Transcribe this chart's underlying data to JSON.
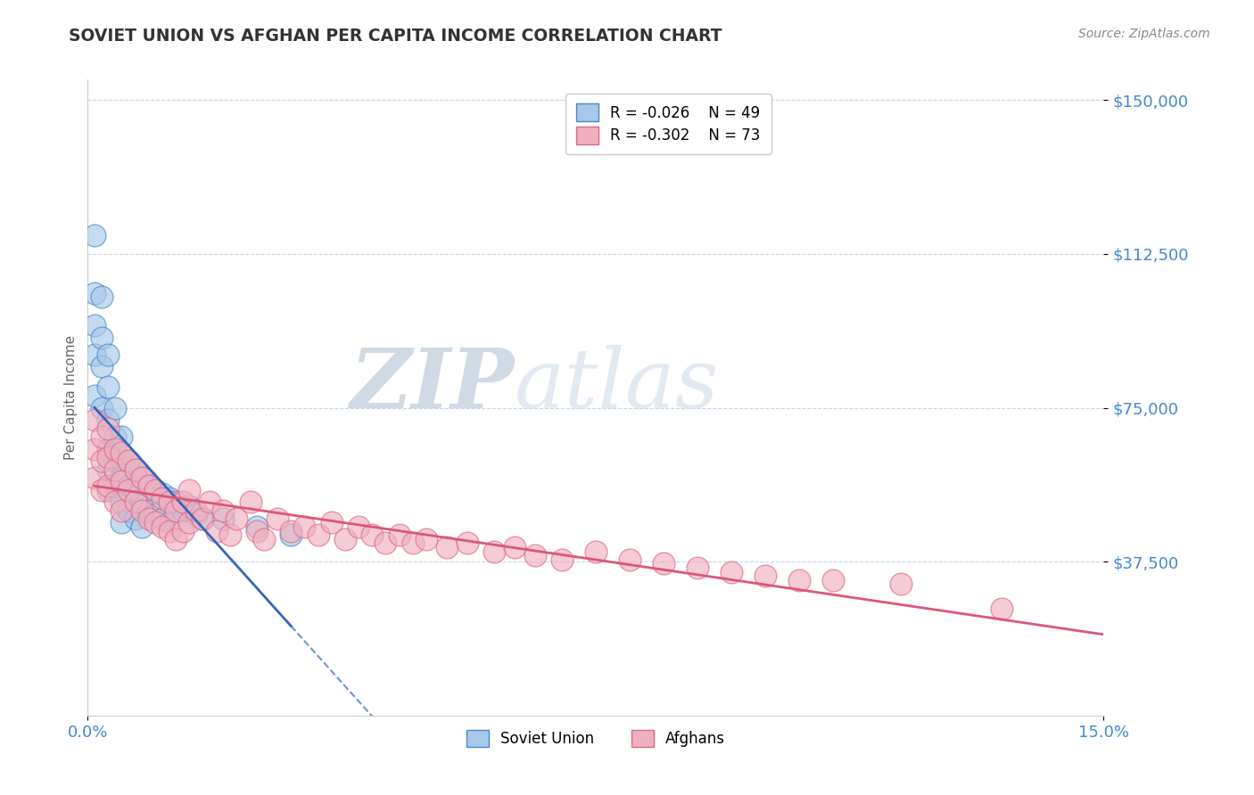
{
  "title": "SOVIET UNION VS AFGHAN PER CAPITA INCOME CORRELATION CHART",
  "source": "Source: ZipAtlas.com",
  "ylabel": "Per Capita Income",
  "xlim": [
    0.0,
    0.15
  ],
  "ylim": [
    0,
    155000
  ],
  "legend1_r": "-0.026",
  "legend1_n": "49",
  "legend2_r": "-0.302",
  "legend2_n": "73",
  "soviet_color": "#a8c8e8",
  "afghan_color": "#f0b0c0",
  "soviet_edge": "#4488cc",
  "afghan_edge": "#dd6688",
  "trendline_soviet_color": "#3366bb",
  "trendline_afghan_color": "#dd5577",
  "background_color": "#ffffff",
  "grid_color": "#c8d4e8",
  "watermark_zip": "ZIP",
  "watermark_atlas": "atlas",
  "watermark_color_zip": "#d0d8e8",
  "watermark_color_atlas": "#c0cce0",
  "title_color": "#333333",
  "source_color": "#888888",
  "axis_color": "#4488cc",
  "ytick_vals": [
    37500,
    75000,
    112500,
    150000
  ],
  "ytick_labels": [
    "$37,500",
    "$75,000",
    "$112,500",
    "$150,000"
  ],
  "legend_label1": "Soviet Union",
  "legend_label2": "Afghans",
  "soviet_union_x": [
    0.001,
    0.001,
    0.001,
    0.001,
    0.001,
    0.002,
    0.002,
    0.002,
    0.002,
    0.003,
    0.003,
    0.003,
    0.003,
    0.003,
    0.003,
    0.004,
    0.004,
    0.004,
    0.004,
    0.005,
    0.005,
    0.005,
    0.005,
    0.005,
    0.006,
    0.006,
    0.006,
    0.007,
    0.007,
    0.007,
    0.008,
    0.008,
    0.008,
    0.009,
    0.009,
    0.01,
    0.01,
    0.011,
    0.011,
    0.012,
    0.012,
    0.013,
    0.014,
    0.015,
    0.016,
    0.017,
    0.02,
    0.025,
    0.03
  ],
  "soviet_union_y": [
    117000,
    103000,
    95000,
    88000,
    78000,
    102000,
    92000,
    85000,
    75000,
    88000,
    80000,
    72000,
    65000,
    60000,
    55000,
    75000,
    68000,
    62000,
    56000,
    68000,
    62000,
    58000,
    52000,
    47000,
    62000,
    56000,
    50000,
    60000,
    55000,
    48000,
    58000,
    52000,
    46000,
    56000,
    50000,
    55000,
    49000,
    54000,
    48000,
    53000,
    47000,
    52000,
    50000,
    51000,
    49000,
    48000,
    48000,
    46000,
    44000
  ],
  "afghan_x": [
    0.001,
    0.001,
    0.001,
    0.002,
    0.002,
    0.002,
    0.003,
    0.003,
    0.003,
    0.004,
    0.004,
    0.004,
    0.005,
    0.005,
    0.005,
    0.006,
    0.006,
    0.007,
    0.007,
    0.008,
    0.008,
    0.009,
    0.009,
    0.01,
    0.01,
    0.011,
    0.011,
    0.012,
    0.012,
    0.013,
    0.013,
    0.014,
    0.014,
    0.015,
    0.015,
    0.016,
    0.017,
    0.018,
    0.019,
    0.02,
    0.021,
    0.022,
    0.024,
    0.025,
    0.026,
    0.028,
    0.03,
    0.032,
    0.034,
    0.036,
    0.038,
    0.04,
    0.042,
    0.044,
    0.046,
    0.048,
    0.05,
    0.053,
    0.056,
    0.06,
    0.063,
    0.066,
    0.07,
    0.075,
    0.08,
    0.085,
    0.09,
    0.095,
    0.1,
    0.105,
    0.11,
    0.12,
    0.135
  ],
  "afghan_y": [
    72000,
    65000,
    58000,
    68000,
    62000,
    55000,
    70000,
    63000,
    56000,
    65000,
    60000,
    52000,
    64000,
    57000,
    50000,
    62000,
    55000,
    60000,
    52000,
    58000,
    50000,
    56000,
    48000,
    55000,
    47000,
    53000,
    46000,
    52000,
    45000,
    50000,
    43000,
    52000,
    45000,
    55000,
    47000,
    50000,
    48000,
    52000,
    45000,
    50000,
    44000,
    48000,
    52000,
    45000,
    43000,
    48000,
    45000,
    46000,
    44000,
    47000,
    43000,
    46000,
    44000,
    42000,
    44000,
    42000,
    43000,
    41000,
    42000,
    40000,
    41000,
    39000,
    38000,
    40000,
    38000,
    37000,
    36000,
    35000,
    34000,
    33000,
    33000,
    32000,
    26000
  ]
}
